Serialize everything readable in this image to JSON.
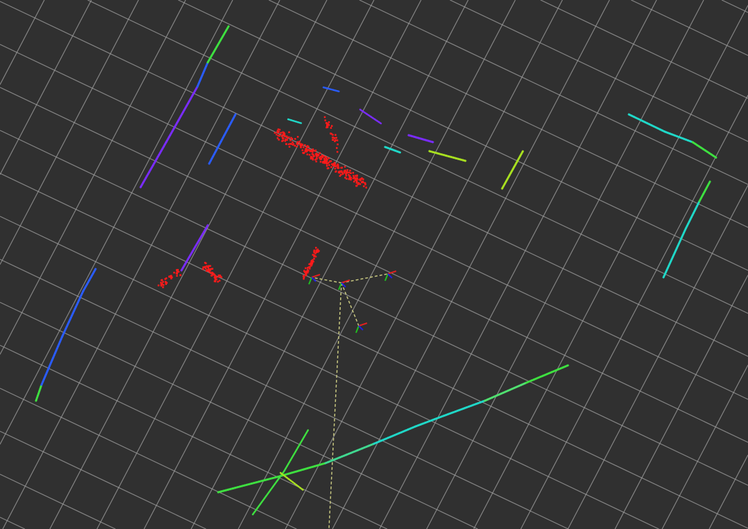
{
  "viewport": {
    "background_color": "#303030",
    "grid_color": "#a0a0a0",
    "grid_visible": true
  },
  "colors": {
    "red_cloud": "#ff1a1a",
    "blue": "#2a5cff",
    "violet": "#7a2cff",
    "cyan": "#20d8c8",
    "green": "#3ee040",
    "yellow_green": "#a8e020",
    "tf_link": "#c8c880"
  }
}
